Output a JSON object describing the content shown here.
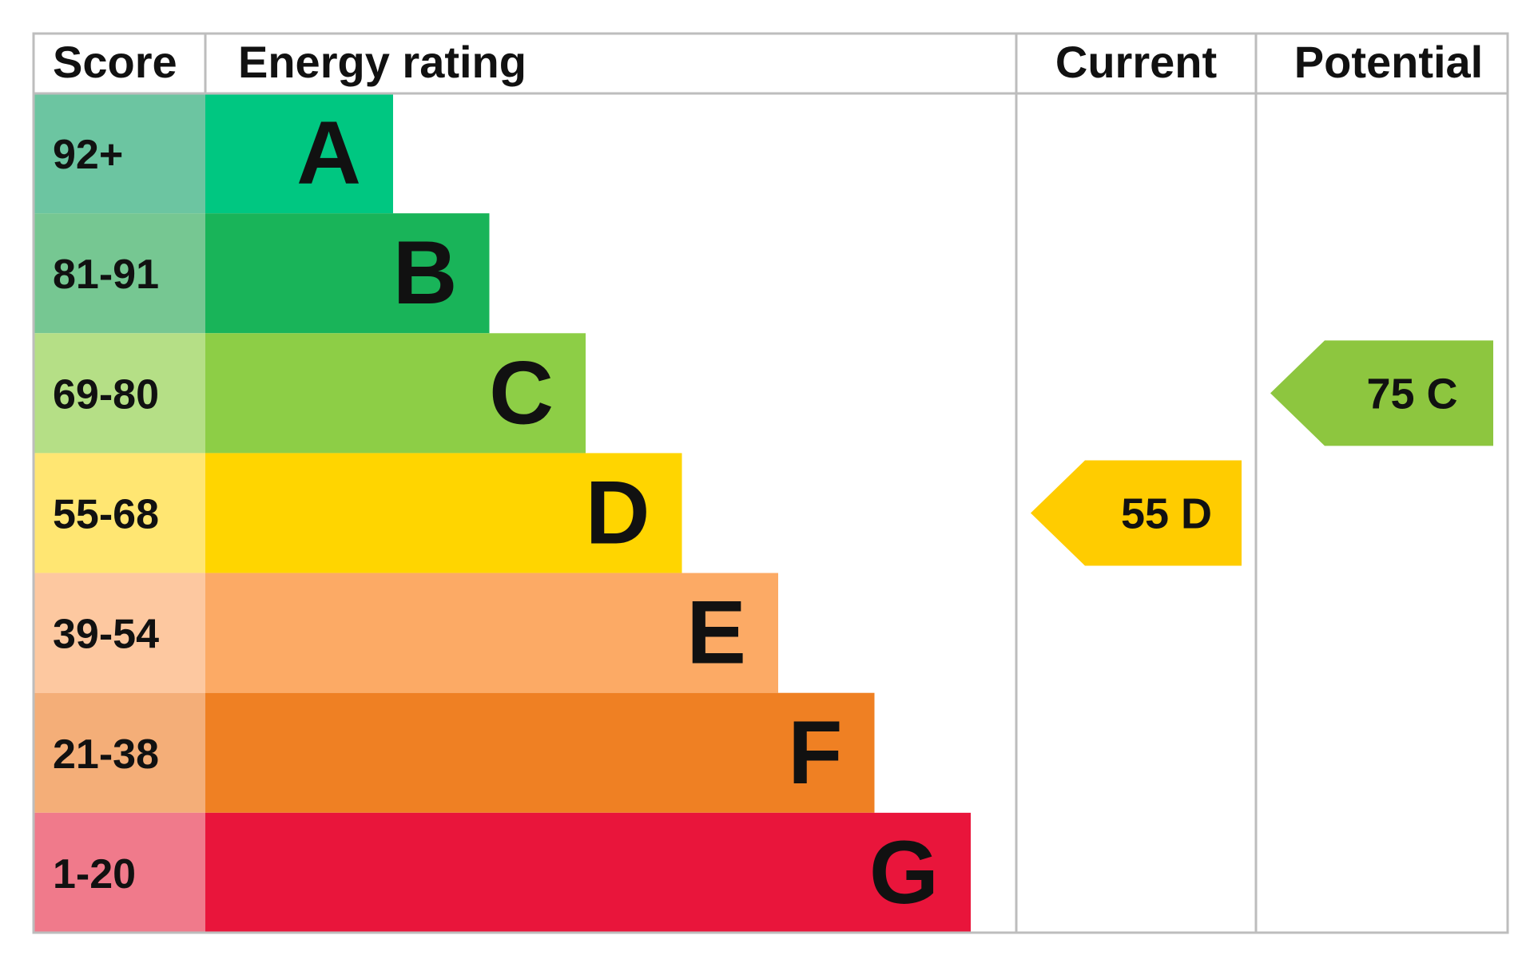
{
  "header": {
    "score": "Score",
    "energy_rating": "Energy rating",
    "current": "Current",
    "potential": "Potential"
  },
  "chart_data": {
    "type": "bar",
    "bands": [
      {
        "letter": "A",
        "range": "92+",
        "bar_color": "#00c781",
        "score_color": "#6cc5a1"
      },
      {
        "letter": "B",
        "range": "81-91",
        "bar_color": "#19b459",
        "score_color": "#76c792"
      },
      {
        "letter": "C",
        "range": "69-80",
        "bar_color": "#8dce46",
        "score_color": "#b5df86"
      },
      {
        "letter": "D",
        "range": "55-68",
        "bar_color": "#ffd500",
        "score_color": "#ffe672"
      },
      {
        "letter": "E",
        "range": "39-54",
        "bar_color": "#fcaa65",
        "score_color": "#fdc8a0"
      },
      {
        "letter": "F",
        "range": "21-38",
        "bar_color": "#ef8023",
        "score_color": "#f4ae78"
      },
      {
        "letter": "G",
        "range": "1-20",
        "bar_color": "#e9153b",
        "score_color": "#f07a8b"
      }
    ],
    "current": {
      "score": 55,
      "band": "D",
      "label": "55 D",
      "color": "#ffcc00"
    },
    "potential": {
      "score": 75,
      "band": "C",
      "label": "75 C",
      "color": "#8dc63f"
    }
  }
}
